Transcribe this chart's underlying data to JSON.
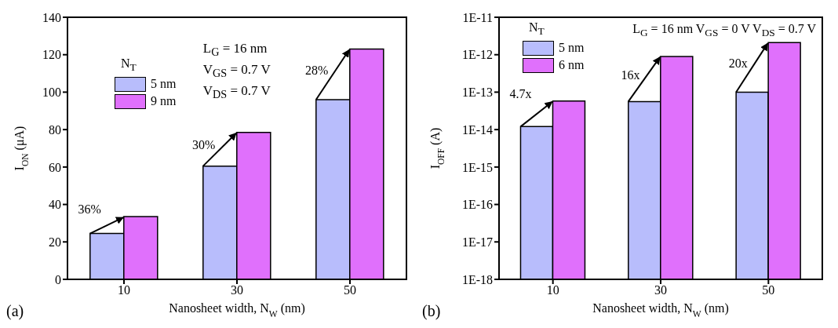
{
  "chart_data": [
    {
      "type": "bar",
      "xlabel": "Nanosheet width, N$_{W}$ (nm)",
      "ylabel": "I$_{ON}$ (μA)",
      "legend_title": "N$_{T}$",
      "categories": [
        "10",
        "30",
        "50"
      ],
      "series": [
        {
          "name": "5 nm",
          "color": "#b8bdfc",
          "values": [
            24.5,
            60.5,
            96
          ]
        },
        {
          "name": "9 nm",
          "color": "#e070fc",
          "values": [
            33.5,
            78.5,
            123
          ]
        }
      ],
      "ylim": [
        0,
        140
      ],
      "yticks": [
        0,
        20,
        40,
        60,
        80,
        100,
        120,
        140
      ],
      "grid": false,
      "legend": "top left",
      "annotations": [
        "(a)",
        "L$_{G}$ = 16 nm",
        "V$_{GS}$ = 0.7 V",
        "V$_{DS}$ = 0.7 V",
        {
          "text": "36%",
          "x": "10",
          "y": 33.5
        },
        {
          "text": "30%",
          "x": "30",
          "y": 78.5
        },
        {
          "text": "28%",
          "x": "50",
          "y": 123
        }
      ]
    },
    {
      "type": "bar",
      "xlabel": "Nanosheet width, N$_{W}$ (nm)",
      "ylabel": "I$_{OFF}$ (A)",
      "legend_title": "N$_{T}$",
      "categories": [
        "10",
        "30",
        "50"
      ],
      "series": [
        {
          "name": "5 nm",
          "color": "#b8bdfc",
          "values": [
            1.2e-14,
            5.6e-14,
            1e-13
          ]
        },
        {
          "name": "6 nm",
          "color": "#e070fc",
          "values": [
            5.8e-14,
            9e-13,
            2.1e-12
          ]
        }
      ],
      "log": true,
      "ylim": [
        1e-18,
        1e-11
      ],
      "yticks": [
        {
          "value": 1e-18,
          "label": "1E-18"
        },
        {
          "value": 1e-17,
          "label": "1E-17"
        },
        {
          "value": 1e-16,
          "label": "1E-16"
        },
        {
          "value": 1e-15,
          "label": "1E-15"
        },
        {
          "value": 1e-14,
          "label": "1E-14"
        },
        {
          "value": 1e-13,
          "label": "1E-13"
        },
        {
          "value": 1e-12,
          "label": "1E-12"
        },
        {
          "value": 1e-11,
          "label": "1E-11"
        }
      ],
      "grid": false,
      "legend": "top left",
      "annotations": [
        "(b)",
        "L$_{G}$ = 16 nm V$_{GS}$ = 0 V  V$_{DS}$ = 0.7 V",
        {
          "text": "4.7x",
          "x": "10",
          "y": 5.8e-14
        },
        {
          "text": "16x",
          "x": "30",
          "y": 9e-13
        },
        {
          "text": "20x",
          "x": "50",
          "y": 2.1e-12
        }
      ]
    }
  ]
}
